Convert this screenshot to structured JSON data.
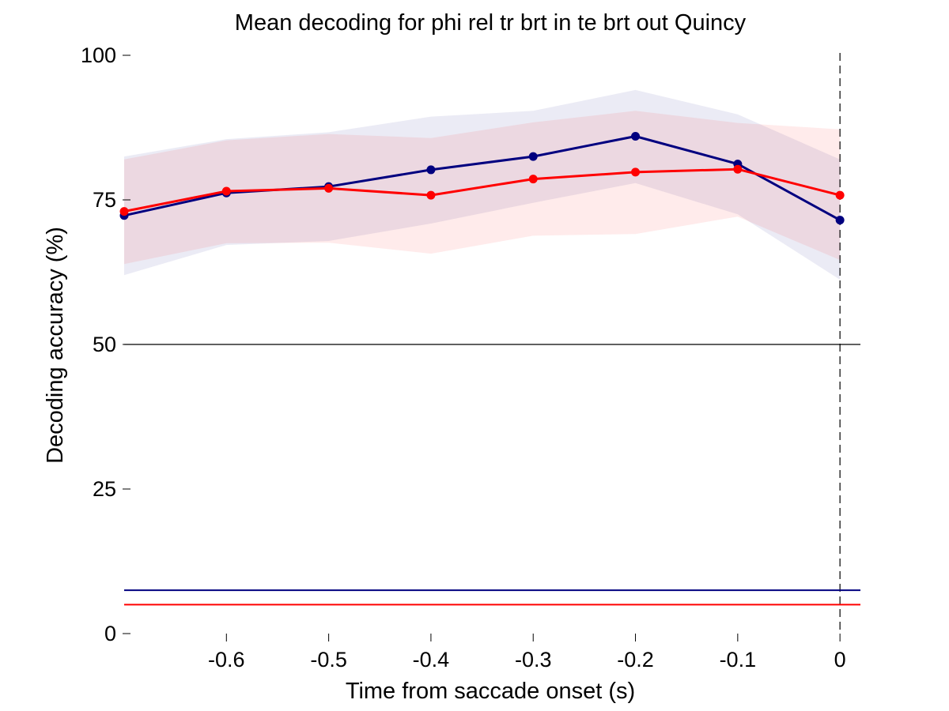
{
  "chart_data": {
    "type": "line",
    "title": "Mean decoding for phi rel tr brt in te brt out  Quincy",
    "xlabel": "Time from saccade onset (s)",
    "ylabel": "Decoding accuracy (%)",
    "xlim": [
      -0.7,
      0.02
    ],
    "ylim": [
      0,
      100
    ],
    "x_ticks": [
      -0.6,
      -0.5,
      -0.4,
      -0.3,
      -0.2,
      -0.1,
      0
    ],
    "x_tick_labels": [
      "-0.6",
      "-0.5",
      "-0.4",
      "-0.3",
      "-0.2",
      "-0.1",
      "0"
    ],
    "y_ticks": [
      0,
      25,
      50,
      75,
      100
    ],
    "y_tick_labels": [
      "0",
      "25",
      "50",
      "75",
      "100"
    ],
    "grid": false,
    "legend": "none",
    "x": [
      -0.7,
      -0.6,
      -0.5,
      -0.4,
      -0.3,
      -0.2,
      -0.1,
      0
    ],
    "series": [
      {
        "color": "#00007f",
        "values": [
          72.3,
          76.2,
          77.3,
          80.2,
          82.5,
          86.0,
          81.2,
          71.5
        ],
        "upper": [
          82.5,
          85.5,
          86.7,
          89.4,
          90.4,
          94.0,
          89.8,
          82.0
        ],
        "lower": [
          62.0,
          67.2,
          67.9,
          70.9,
          74.5,
          77.9,
          72.5,
          61.2
        ],
        "chance_level": 7.5
      },
      {
        "color": "#ff0000",
        "values": [
          73.0,
          76.5,
          77.0,
          75.8,
          78.6,
          79.8,
          80.3,
          75.8
        ],
        "upper": [
          82.0,
          85.3,
          86.4,
          85.7,
          88.4,
          90.4,
          88.3,
          87.2
        ],
        "lower": [
          63.9,
          67.5,
          67.6,
          65.7,
          68.8,
          69.1,
          72.1,
          64.6
        ],
        "chance_level": 5.0
      }
    ],
    "reference_lines": [
      {
        "orientation": "horizontal",
        "y": 50,
        "color": "#000000",
        "style": "solid"
      },
      {
        "orientation": "vertical",
        "x": 0,
        "color": "#000000",
        "style": "dashed"
      }
    ]
  }
}
